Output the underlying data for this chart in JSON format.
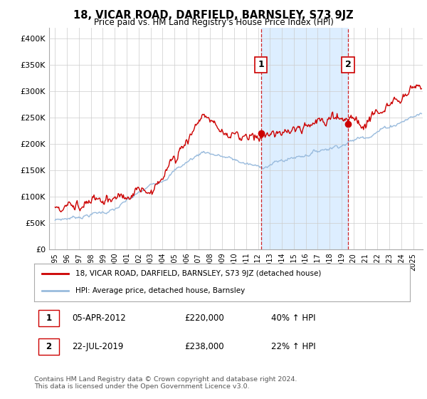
{
  "title": "18, VICAR ROAD, DARFIELD, BARNSLEY, S73 9JZ",
  "subtitle": "Price paid vs. HM Land Registry's House Price Index (HPI)",
  "ylabel_ticks": [
    "£0",
    "£50K",
    "£100K",
    "£150K",
    "£200K",
    "£250K",
    "£300K",
    "£350K",
    "£400K"
  ],
  "ytick_values": [
    0,
    50000,
    100000,
    150000,
    200000,
    250000,
    300000,
    350000,
    400000
  ],
  "ylim": [
    0,
    420000
  ],
  "legend_line1": "18, VICAR ROAD, DARFIELD, BARNSLEY, S73 9JZ (detached house)",
  "legend_line2": "HPI: Average price, detached house, Barnsley",
  "annotation1_label": "1",
  "annotation1_date": "05-APR-2012",
  "annotation1_price": "£220,000",
  "annotation1_pct": "40% ↑ HPI",
  "annotation2_label": "2",
  "annotation2_date": "22-JUL-2019",
  "annotation2_price": "£238,000",
  "annotation2_pct": "22% ↑ HPI",
  "footer": "Contains HM Land Registry data © Crown copyright and database right 2024.\nThis data is licensed under the Open Government Licence v3.0.",
  "red_color": "#cc0000",
  "blue_color": "#99bbdd",
  "shade_color": "#ddeeff",
  "vline_color": "#cc0000",
  "background_color": "#ffffff",
  "grid_color": "#cccccc",
  "t1": 2012.25,
  "t2": 2019.54,
  "p1": 220000,
  "p2": 238000,
  "xlim_left": 1994.5,
  "xlim_right": 2025.8
}
